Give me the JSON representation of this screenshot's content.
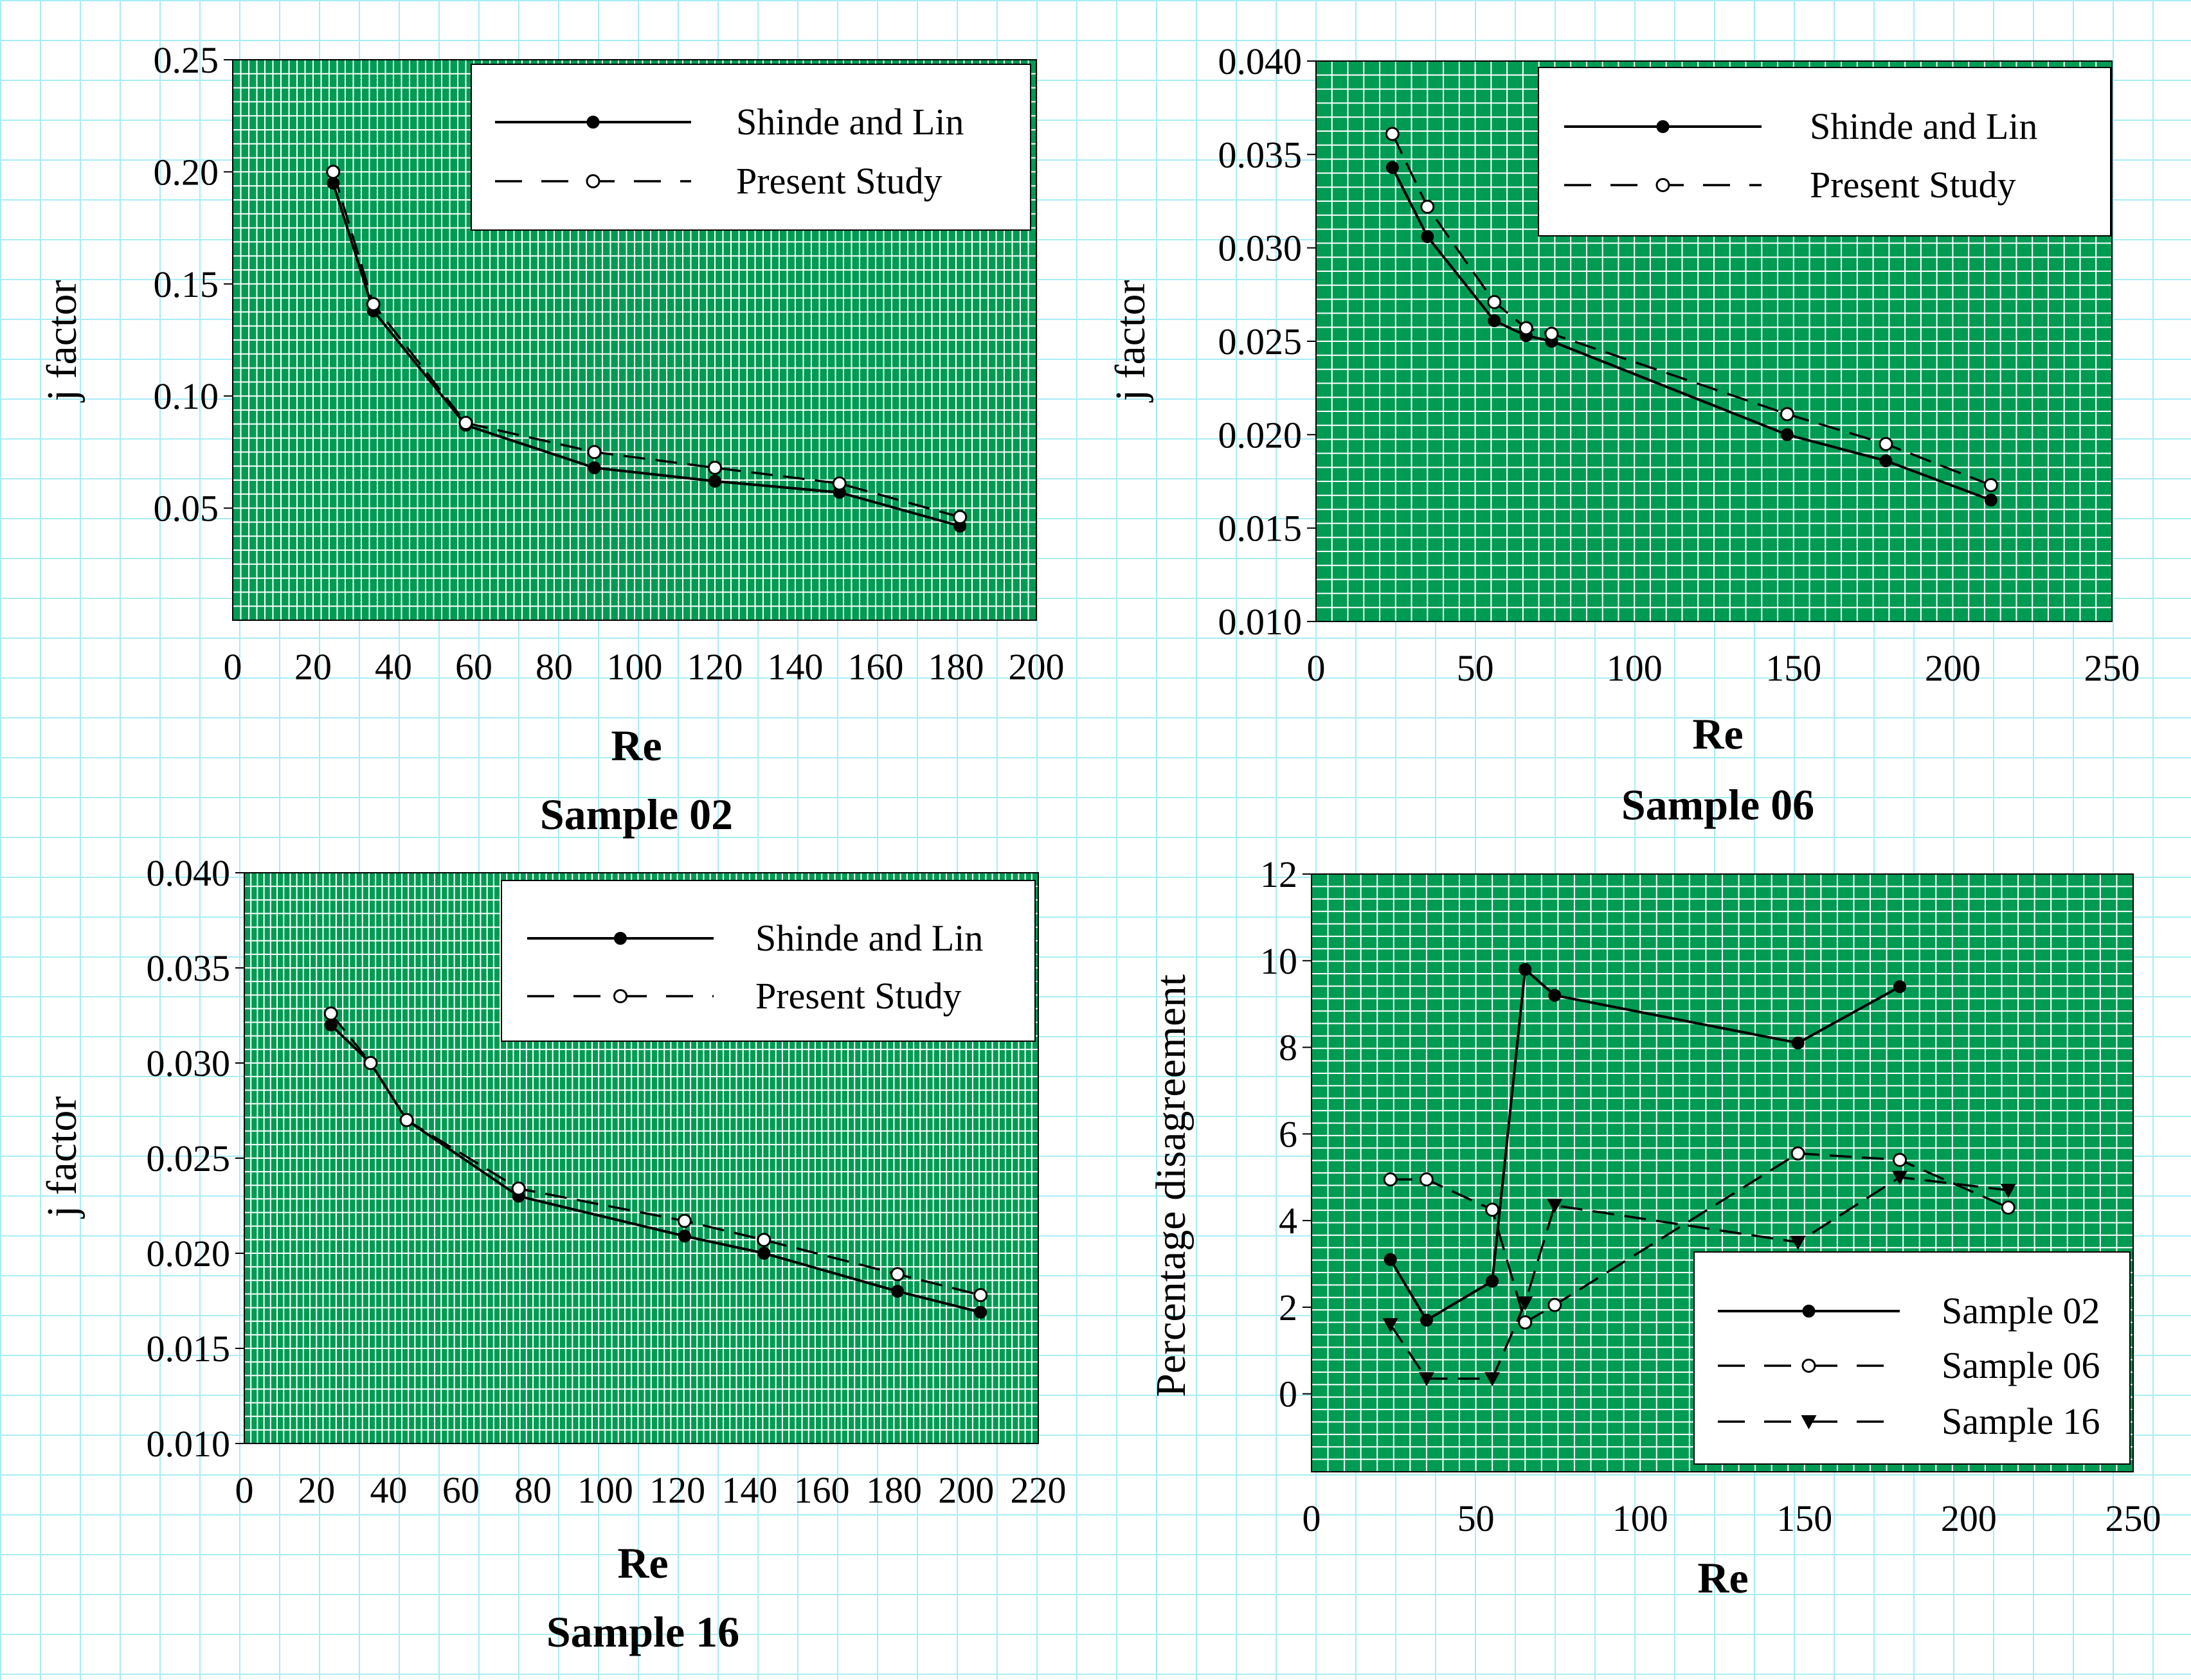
{
  "chart_data": [
    {
      "type": "line",
      "title": "Sample 02",
      "xlabel": "Re",
      "ylabel": "j factor",
      "xlim": [
        0,
        200
      ],
      "ylim": [
        0,
        0.25
      ],
      "xticks": [
        "0",
        "20",
        "40",
        "60",
        "80",
        "100",
        "120",
        "140",
        "160",
        "180",
        "200"
      ],
      "yticks": [
        "0.05",
        "0.10",
        "0.15",
        "0.20",
        "0.25"
      ],
      "grid": true,
      "legend_position": "top-right",
      "series": [
        {
          "name": "Shinde and Lin",
          "style": "solid",
          "marker": "filled-circle",
          "x": [
            25,
            35,
            58,
            90,
            120,
            151,
            181
          ],
          "y": [
            0.195,
            0.138,
            0.087,
            0.068,
            0.062,
            0.057,
            0.042
          ]
        },
        {
          "name": "Present Study",
          "style": "dashed",
          "marker": "open-circle",
          "x": [
            25,
            35,
            58,
            90,
            120,
            151,
            181
          ],
          "y": [
            0.2,
            0.141,
            0.088,
            0.075,
            0.068,
            0.061,
            0.046
          ]
        }
      ]
    },
    {
      "type": "line",
      "title": "Sample 06",
      "xlabel": "Re",
      "ylabel": "j factor",
      "xlim": [
        0,
        250
      ],
      "ylim": [
        0.01,
        0.04
      ],
      "xticks": [
        "0",
        "50",
        "100",
        "150",
        "200",
        "250"
      ],
      "yticks": [
        "0.010",
        "0.015",
        "0.020",
        "0.025",
        "0.030",
        "0.035",
        "0.040"
      ],
      "grid": true,
      "legend_position": "top-right",
      "series": [
        {
          "name": "Shinde and Lin",
          "style": "solid",
          "marker": "filled-circle",
          "x": [
            24,
            35,
            56,
            66,
            74,
            148,
            179,
            212
          ],
          "y": [
            0.0343,
            0.0306,
            0.0261,
            0.0253,
            0.025,
            0.02,
            0.0186,
            0.0165
          ]
        },
        {
          "name": "Present Study",
          "style": "dashed",
          "marker": "open-circle",
          "x": [
            24,
            35,
            56,
            66,
            74,
            148,
            179,
            212
          ],
          "y": [
            0.0361,
            0.0322,
            0.0271,
            0.0257,
            0.0254,
            0.0211,
            0.0195,
            0.0173
          ]
        }
      ]
    },
    {
      "type": "line",
      "title": "Sample 16",
      "xlabel": "Re",
      "ylabel": "j factor",
      "xlim": [
        0,
        220
      ],
      "ylim": [
        0.01,
        0.04
      ],
      "xticks": [
        "0",
        "20",
        "40",
        "60",
        "80",
        "100",
        "120",
        "140",
        "160",
        "180",
        "200",
        "220"
      ],
      "yticks": [
        "0.010",
        "0.015",
        "0.020",
        "0.025",
        "0.030",
        "0.035",
        "0.040"
      ],
      "grid": true,
      "legend_position": "top-right",
      "series": [
        {
          "name": "Shinde and Lin",
          "style": "solid",
          "marker": "filled-circle",
          "x": [
            24,
            35,
            45,
            76,
            122,
            144,
            181,
            204
          ],
          "y": [
            0.032,
            0.03,
            0.027,
            0.023,
            0.0209,
            0.02,
            0.018,
            0.0169
          ]
        },
        {
          "name": "Present Study",
          "style": "dashed",
          "marker": "open-circle",
          "x": [
            24,
            35,
            45,
            76,
            122,
            144,
            181,
            204
          ],
          "y": [
            0.0326,
            0.03,
            0.027,
            0.0234,
            0.0217,
            0.0207,
            0.0189,
            0.0178
          ]
        }
      ]
    },
    {
      "type": "line",
      "title": "",
      "xlabel": "Re",
      "ylabel": "Percentage disagreement",
      "xlim": [
        0,
        250
      ],
      "ylim": [
        -1.8,
        12
      ],
      "xticks": [
        "0",
        "50",
        "100",
        "150",
        "200",
        "250"
      ],
      "yticks": [
        "0",
        "2",
        "4",
        "6",
        "8",
        "10",
        "12"
      ],
      "grid": true,
      "legend_position": "bottom-right",
      "series": [
        {
          "name": "Sample 02",
          "style": "solid",
          "marker": "filled-circle",
          "x": [
            24,
            35,
            55,
            65,
            74,
            148,
            179
          ],
          "y": [
            3.1,
            1.7,
            2.6,
            9.8,
            9.2,
            8.1,
            9.4
          ]
        },
        {
          "name": "Sample 06",
          "style": "dashed",
          "marker": "open-circle",
          "x": [
            24,
            35,
            55,
            65,
            74,
            148,
            179,
            212
          ],
          "y": [
            4.95,
            4.95,
            4.25,
            1.65,
            2.05,
            5.55,
            5.4,
            4.3
          ]
        },
        {
          "name": "Sample 16",
          "style": "dashed",
          "marker": "filled-triangle-down",
          "x": [
            24,
            35,
            55,
            65,
            74,
            148,
            179,
            212
          ],
          "y": [
            1.6,
            0.35,
            0.35,
            2.1,
            4.35,
            3.5,
            5.0,
            4.7
          ]
        }
      ]
    }
  ]
}
